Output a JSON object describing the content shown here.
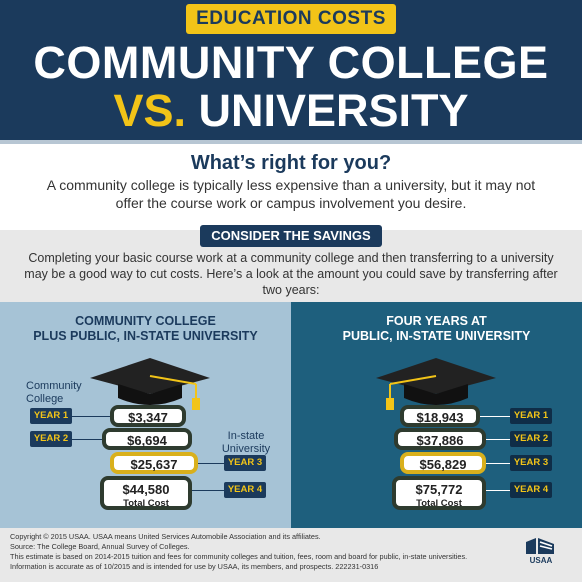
{
  "tag": "EDUCATION COSTS",
  "title_line1": "COMMUNITY COLLEGE",
  "title_vs": "VS.",
  "title_university": "UNIVERSITY",
  "question": "What’s right for you?",
  "description": "A community college is typically less expensive than a university, but it may not offer the course work or campus involvement you desire.",
  "consider_label": "CONSIDER THE SAVINGS",
  "savings_text": "Completing your basic course work at a community college and then transferring to a university may be a good way to cut costs. Here’s a look at the amount you could save by transferring after two years:",
  "left": {
    "heading_line1": "COMMUNITY COLLEGE",
    "heading_line2": "PLUS PUBLIC, IN-STATE UNIVERSITY",
    "cc_label_line1": "Community",
    "cc_label_line2": "College",
    "univ_label_line1": "In-state",
    "univ_label_line2": "University",
    "rows": [
      {
        "year": "YEAR 1",
        "amount": "$3,347"
      },
      {
        "year": "YEAR 2",
        "amount": "$6,694"
      },
      {
        "year": "YEAR 3",
        "amount": "$25,637"
      },
      {
        "year": "YEAR 4",
        "amount": "$44,580"
      }
    ],
    "total_label": "Total Cost"
  },
  "right": {
    "heading_line1": "FOUR YEARS AT",
    "heading_line2": "PUBLIC, IN-STATE UNIVERSITY",
    "rows": [
      {
        "year": "YEAR 1",
        "amount": "$18,943"
      },
      {
        "year": "YEAR 2",
        "amount": "$37,886"
      },
      {
        "year": "YEAR 3",
        "amount": "$56,829"
      },
      {
        "year": "YEAR 4",
        "amount": "$75,772"
      }
    ],
    "total_label": "Total Cost"
  },
  "footer": {
    "line1": "Copyright © 2015 USAA. USAA means United Services Automobile Association and its affiliates.",
    "line2": "Source: The College Board, Annual Survey of Colleges.",
    "line3": "This estimate is based on 2014-2015 tuition and fees for community colleges and tuition, fees, room and board for public, in-state universities.",
    "line4": "Information is accurate as of 10/2015 and is intended for use by USAA, its members, and prospects. 222231-0316"
  },
  "logo_text": "USAA",
  "colors": {
    "navy": "#1b3a5c",
    "gold": "#f2c418",
    "light_blue": "#a6c3d6",
    "teal": "#1e5f7d",
    "book_green": "#2e3b2f",
    "book_gold": "#d9b01c"
  },
  "icons": [
    "graduation-cap-icon",
    "usaa-eagle-icon"
  ]
}
